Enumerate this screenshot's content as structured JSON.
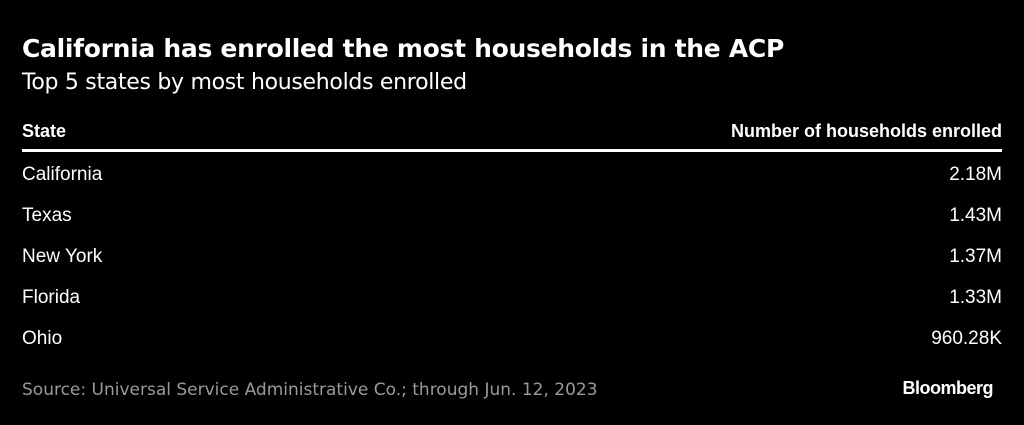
{
  "header": {
    "title": "California has enrolled the most households in the ACP",
    "subtitle": "Top 5 states by most households enrolled"
  },
  "table": {
    "columns": [
      "State",
      "Number of households enrolled"
    ],
    "rows": [
      [
        "California",
        "2.18M"
      ],
      [
        "Texas",
        "1.43M"
      ],
      [
        "New York",
        "1.37M"
      ],
      [
        "Florida",
        "1.33M"
      ],
      [
        "Ohio",
        "960.28K"
      ]
    ]
  },
  "footer": {
    "source": "Source: Universal Service Administrative Co.; through Jun. 12, 2023",
    "brand": "Bloomberg"
  }
}
